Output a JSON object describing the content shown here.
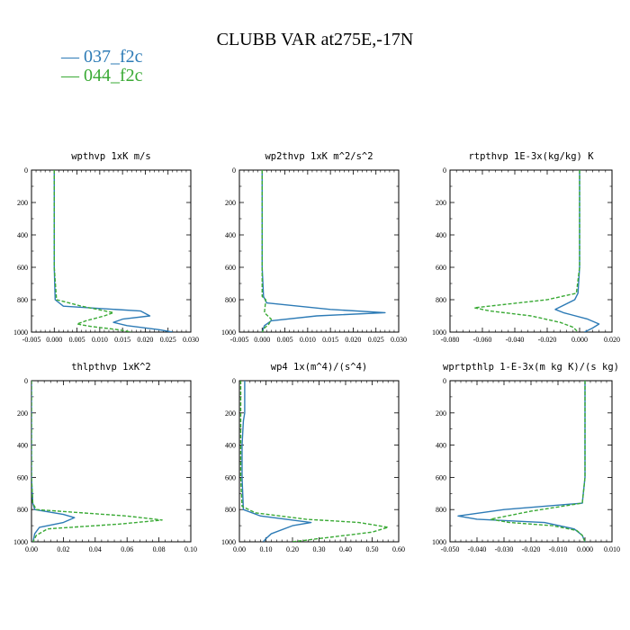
{
  "figure": {
    "title": "CLUBB VAR at275E,-17N"
  },
  "legend": [
    {
      "label": "— 037_f2c",
      "color": "#2d7bb6"
    },
    {
      "label": "— 044_f2c",
      "color": "#3aaa35"
    }
  ],
  "chart_data": [
    {
      "type": "line",
      "title": "wpthvp  1xK m/s",
      "xlim": [
        -0.005,
        0.03
      ],
      "xticks": [
        "-0.005",
        "0.000",
        "0.005",
        "0.010",
        "0.015",
        "0.020",
        "0.025",
        "0.030"
      ],
      "ylim": [
        1000,
        0
      ],
      "yticks": [
        "0",
        "200",
        "400",
        "600",
        "800",
        "1000"
      ],
      "series": [
        {
          "name": "037_f2c",
          "color": "#2d7bb6",
          "dash": false,
          "x": [
            0.0,
            0.0,
            0.0,
            0.0,
            0.0002,
            0.002,
            0.019,
            0.021,
            0.015,
            0.013,
            0.016,
            0.023,
            0.026
          ],
          "y": [
            0,
            200,
            400,
            600,
            800,
            840,
            870,
            900,
            920,
            940,
            960,
            985,
            1000
          ]
        },
        {
          "name": "044_f2c",
          "color": "#3aaa35",
          "dash": true,
          "x": [
            0.0,
            0.0,
            0.0,
            0.0,
            0.0005,
            0.006,
            0.013,
            0.011,
            0.007,
            0.005,
            0.008,
            0.014,
            0.017
          ],
          "y": [
            0,
            200,
            400,
            600,
            800,
            840,
            880,
            900,
            930,
            950,
            965,
            985,
            1000
          ]
        }
      ]
    },
    {
      "type": "line",
      "title": "wp2thvp  1xK m^2/s^2",
      "xlim": [
        -0.005,
        0.03
      ],
      "xticks": [
        "-0.005",
        "0.000",
        "0.005",
        "0.010",
        "0.015",
        "0.020",
        "0.025",
        "0.030"
      ],
      "ylim": [
        1000,
        0
      ],
      "yticks": [
        "0",
        "200",
        "400",
        "600",
        "800",
        "1000"
      ],
      "series": [
        {
          "name": "037_f2c",
          "color": "#2d7bb6",
          "dash": false,
          "x": [
            0.0,
            0.0,
            0.0,
            0.0,
            0.0003,
            0.001,
            0.015,
            0.027,
            0.012,
            0.002,
            0.0005,
            0.0
          ],
          "y": [
            0,
            200,
            400,
            600,
            780,
            820,
            860,
            880,
            900,
            930,
            960,
            1000
          ]
        },
        {
          "name": "044_f2c",
          "color": "#3aaa35",
          "dash": true,
          "x": [
            0.0,
            0.0,
            0.0,
            0.0,
            0.0,
            0.0008,
            0.0005,
            0.002,
            0.0015,
            0.0005,
            0.0
          ],
          "y": [
            0,
            200,
            400,
            600,
            780,
            800,
            880,
            920,
            950,
            975,
            1000
          ]
        }
      ]
    },
    {
      "type": "line",
      "title": "rtpthvp  1E-3x(kg/kg) K",
      "xlim": [
        -0.08,
        0.02
      ],
      "xticks": [
        "-0.080",
        "-0.060",
        "-0.040",
        "-0.020",
        "0.000",
        "0.020"
      ],
      "ylim": [
        1000,
        0
      ],
      "yticks": [
        "0",
        "200",
        "400",
        "600",
        "800",
        "1000"
      ],
      "series": [
        {
          "name": "037_f2c",
          "color": "#2d7bb6",
          "dash": false,
          "x": [
            0.0,
            0.0,
            0.0,
            0.0,
            -0.001,
            -0.003,
            -0.015,
            -0.01,
            0.005,
            0.012,
            0.008,
            0.003
          ],
          "y": [
            0,
            200,
            400,
            600,
            760,
            800,
            860,
            880,
            920,
            950,
            975,
            1000
          ]
        },
        {
          "name": "044_f2c",
          "color": "#3aaa35",
          "dash": true,
          "x": [
            0.0,
            0.0,
            0.0,
            0.0,
            -0.002,
            -0.02,
            -0.065,
            -0.055,
            -0.03,
            -0.012,
            -0.004,
            -0.001
          ],
          "y": [
            0,
            200,
            400,
            600,
            760,
            800,
            850,
            870,
            900,
            940,
            970,
            1000
          ]
        }
      ]
    },
    {
      "type": "line",
      "title": "thlpthvp  1xK^2",
      "xlim": [
        0.0,
        0.1
      ],
      "xticks": [
        "0.00",
        "0.02",
        "0.04",
        "0.06",
        "0.08",
        "0.10"
      ],
      "ylim": [
        1000,
        0
      ],
      "yticks": [
        "0",
        "200",
        "400",
        "600",
        "800",
        "1000"
      ],
      "series": [
        {
          "name": "037_f2c",
          "color": "#2d7bb6",
          "dash": false,
          "x": [
            0.0,
            0.0,
            0.0,
            0.0,
            0.0008,
            0.002,
            0.02,
            0.027,
            0.02,
            0.005,
            0.002,
            0.001
          ],
          "y": [
            0,
            200,
            400,
            600,
            760,
            800,
            830,
            850,
            880,
            910,
            950,
            1000
          ]
        },
        {
          "name": "044_f2c",
          "color": "#3aaa35",
          "dash": true,
          "x": [
            0.0,
            0.0,
            0.0,
            0.0,
            0.0008,
            0.003,
            0.06,
            0.082,
            0.055,
            0.01,
            0.003,
            0.001
          ],
          "y": [
            0,
            200,
            400,
            600,
            760,
            800,
            840,
            865,
            890,
            920,
            960,
            1000
          ]
        }
      ]
    },
    {
      "type": "line",
      "title": "wp4  1x(m^4)/(s^4)",
      "xlim": [
        0.0,
        0.6
      ],
      "xticks": [
        "0.00",
        "0.10",
        "0.20",
        "0.30",
        "0.40",
        "0.50",
        "0.60"
      ],
      "ylim": [
        1000,
        0
      ],
      "yticks": [
        "0",
        "200",
        "400",
        "600",
        "800",
        "1000"
      ],
      "series": [
        {
          "name": "037_f2c",
          "color": "#2d7bb6",
          "dash": false,
          "x": [
            0.02,
            0.02,
            0.015,
            0.01,
            0.01,
            0.015,
            0.08,
            0.27,
            0.2,
            0.12,
            0.1,
            0.09
          ],
          "y": [
            0,
            200,
            250,
            400,
            600,
            800,
            840,
            880,
            900,
            950,
            980,
            1000
          ]
        },
        {
          "name": "044_f2c",
          "color": "#3aaa35",
          "dash": true,
          "x": [
            0.005,
            0.005,
            0.005,
            0.005,
            0.01,
            0.06,
            0.25,
            0.45,
            0.56,
            0.5,
            0.35,
            0.2
          ],
          "y": [
            0,
            200,
            400,
            600,
            780,
            820,
            860,
            880,
            910,
            940,
            970,
            1000
          ]
        }
      ]
    },
    {
      "type": "line",
      "title": "wprtpthlp  1-E-3x(m kg K)/(s kg)",
      "xlim": [
        -0.05,
        0.01
      ],
      "xticks": [
        "-0.050",
        "-0.040",
        "-0.030",
        "-0.020",
        "-0.010",
        "0.000",
        "0.010"
      ],
      "ylim": [
        1000,
        0
      ],
      "yticks": [
        "0",
        "200",
        "400",
        "600",
        "800",
        "1000"
      ],
      "series": [
        {
          "name": "037_f2c",
          "color": "#2d7bb6",
          "dash": false,
          "x": [
            0.0,
            0.0,
            0.0,
            0.0,
            -0.001,
            -0.03,
            -0.047,
            -0.04,
            -0.015,
            -0.004,
            -0.001,
            0.0
          ],
          "y": [
            0,
            200,
            400,
            600,
            760,
            800,
            840,
            860,
            880,
            920,
            960,
            1000
          ]
        },
        {
          "name": "044_f2c",
          "color": "#3aaa35",
          "dash": true,
          "x": [
            0.0,
            0.0,
            0.0,
            0.0,
            -0.001,
            -0.02,
            -0.035,
            -0.028,
            -0.012,
            -0.003,
            -0.001,
            0.0
          ],
          "y": [
            0,
            200,
            400,
            600,
            760,
            810,
            860,
            880,
            900,
            930,
            960,
            1000
          ]
        }
      ]
    }
  ]
}
